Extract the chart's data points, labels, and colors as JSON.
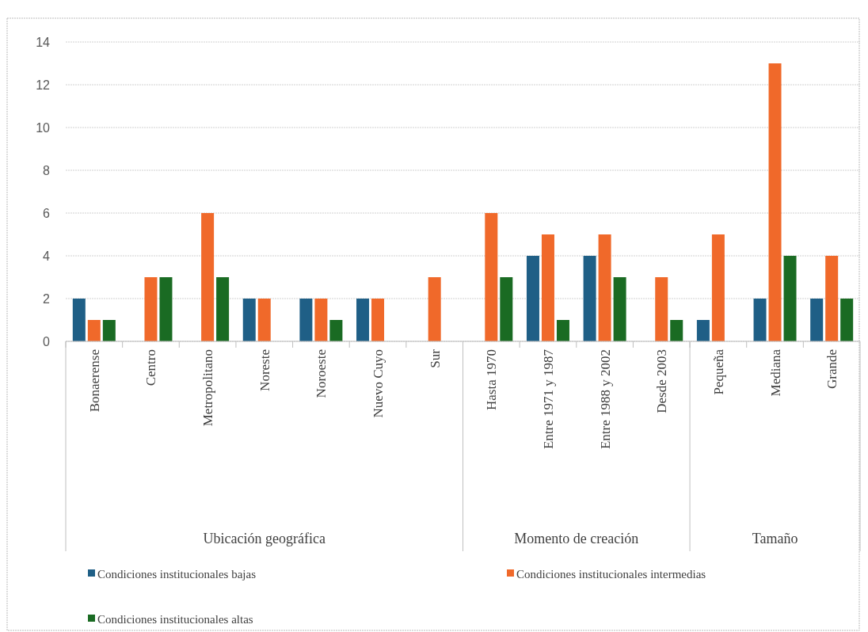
{
  "chart_data": {
    "type": "bar",
    "categories": [
      "Bonaerense",
      "Centro",
      "Metropolitano",
      "Noreste",
      "Noroeste",
      "Nuevo Cuyo",
      "Sur",
      "Hasta 1970",
      "Entre 1971 y 1987",
      "Entre 1988 y 2002",
      "Desde 2003",
      "Pequeña",
      "Mediana",
      "Grande"
    ],
    "series": [
      {
        "name": "Condiciones institucionales bajas",
        "color": "#1f5f86",
        "values": [
          2,
          null,
          null,
          2,
          2,
          2,
          null,
          null,
          4,
          4,
          null,
          1,
          2,
          2
        ]
      },
      {
        "name": "Condiciones institucionales intermedias",
        "color": "#f0692a",
        "values": [
          1,
          3,
          6,
          2,
          2,
          2,
          3,
          6,
          5,
          5,
          3,
          5,
          13,
          4
        ]
      },
      {
        "name": "Condiciones institucionales altas",
        "color": "#1a6b23",
        "values": [
          1,
          3,
          3,
          null,
          1,
          null,
          null,
          3,
          1,
          3,
          1,
          null,
          4,
          2
        ]
      }
    ],
    "ylim": [
      0,
      14
    ],
    "yticks": [
      0,
      2,
      4,
      6,
      8,
      10,
      12,
      14
    ],
    "grid": "y",
    "legend": "bottom",
    "annotations": [
      "Ubicación geográfica",
      "Momento de creación",
      "Tamaño"
    ]
  }
}
